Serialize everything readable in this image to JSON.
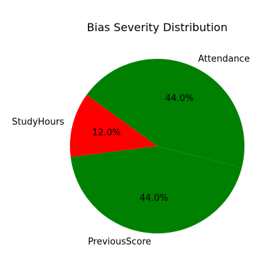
{
  "chart_data": {
    "type": "pie",
    "title": "Bias Severity Distribution",
    "categories": [
      "Attendance",
      "StudyHours",
      "PreviousScore"
    ],
    "values": [
      44.0,
      12.0,
      44.0
    ],
    "percent_labels": [
      "44.0%",
      "12.0%",
      "44.0%"
    ],
    "colors": [
      "#008000",
      "#ff0000",
      "#008000"
    ],
    "start_angle_deg": 345.6,
    "direction": "counterclockwise",
    "legend": "none"
  }
}
